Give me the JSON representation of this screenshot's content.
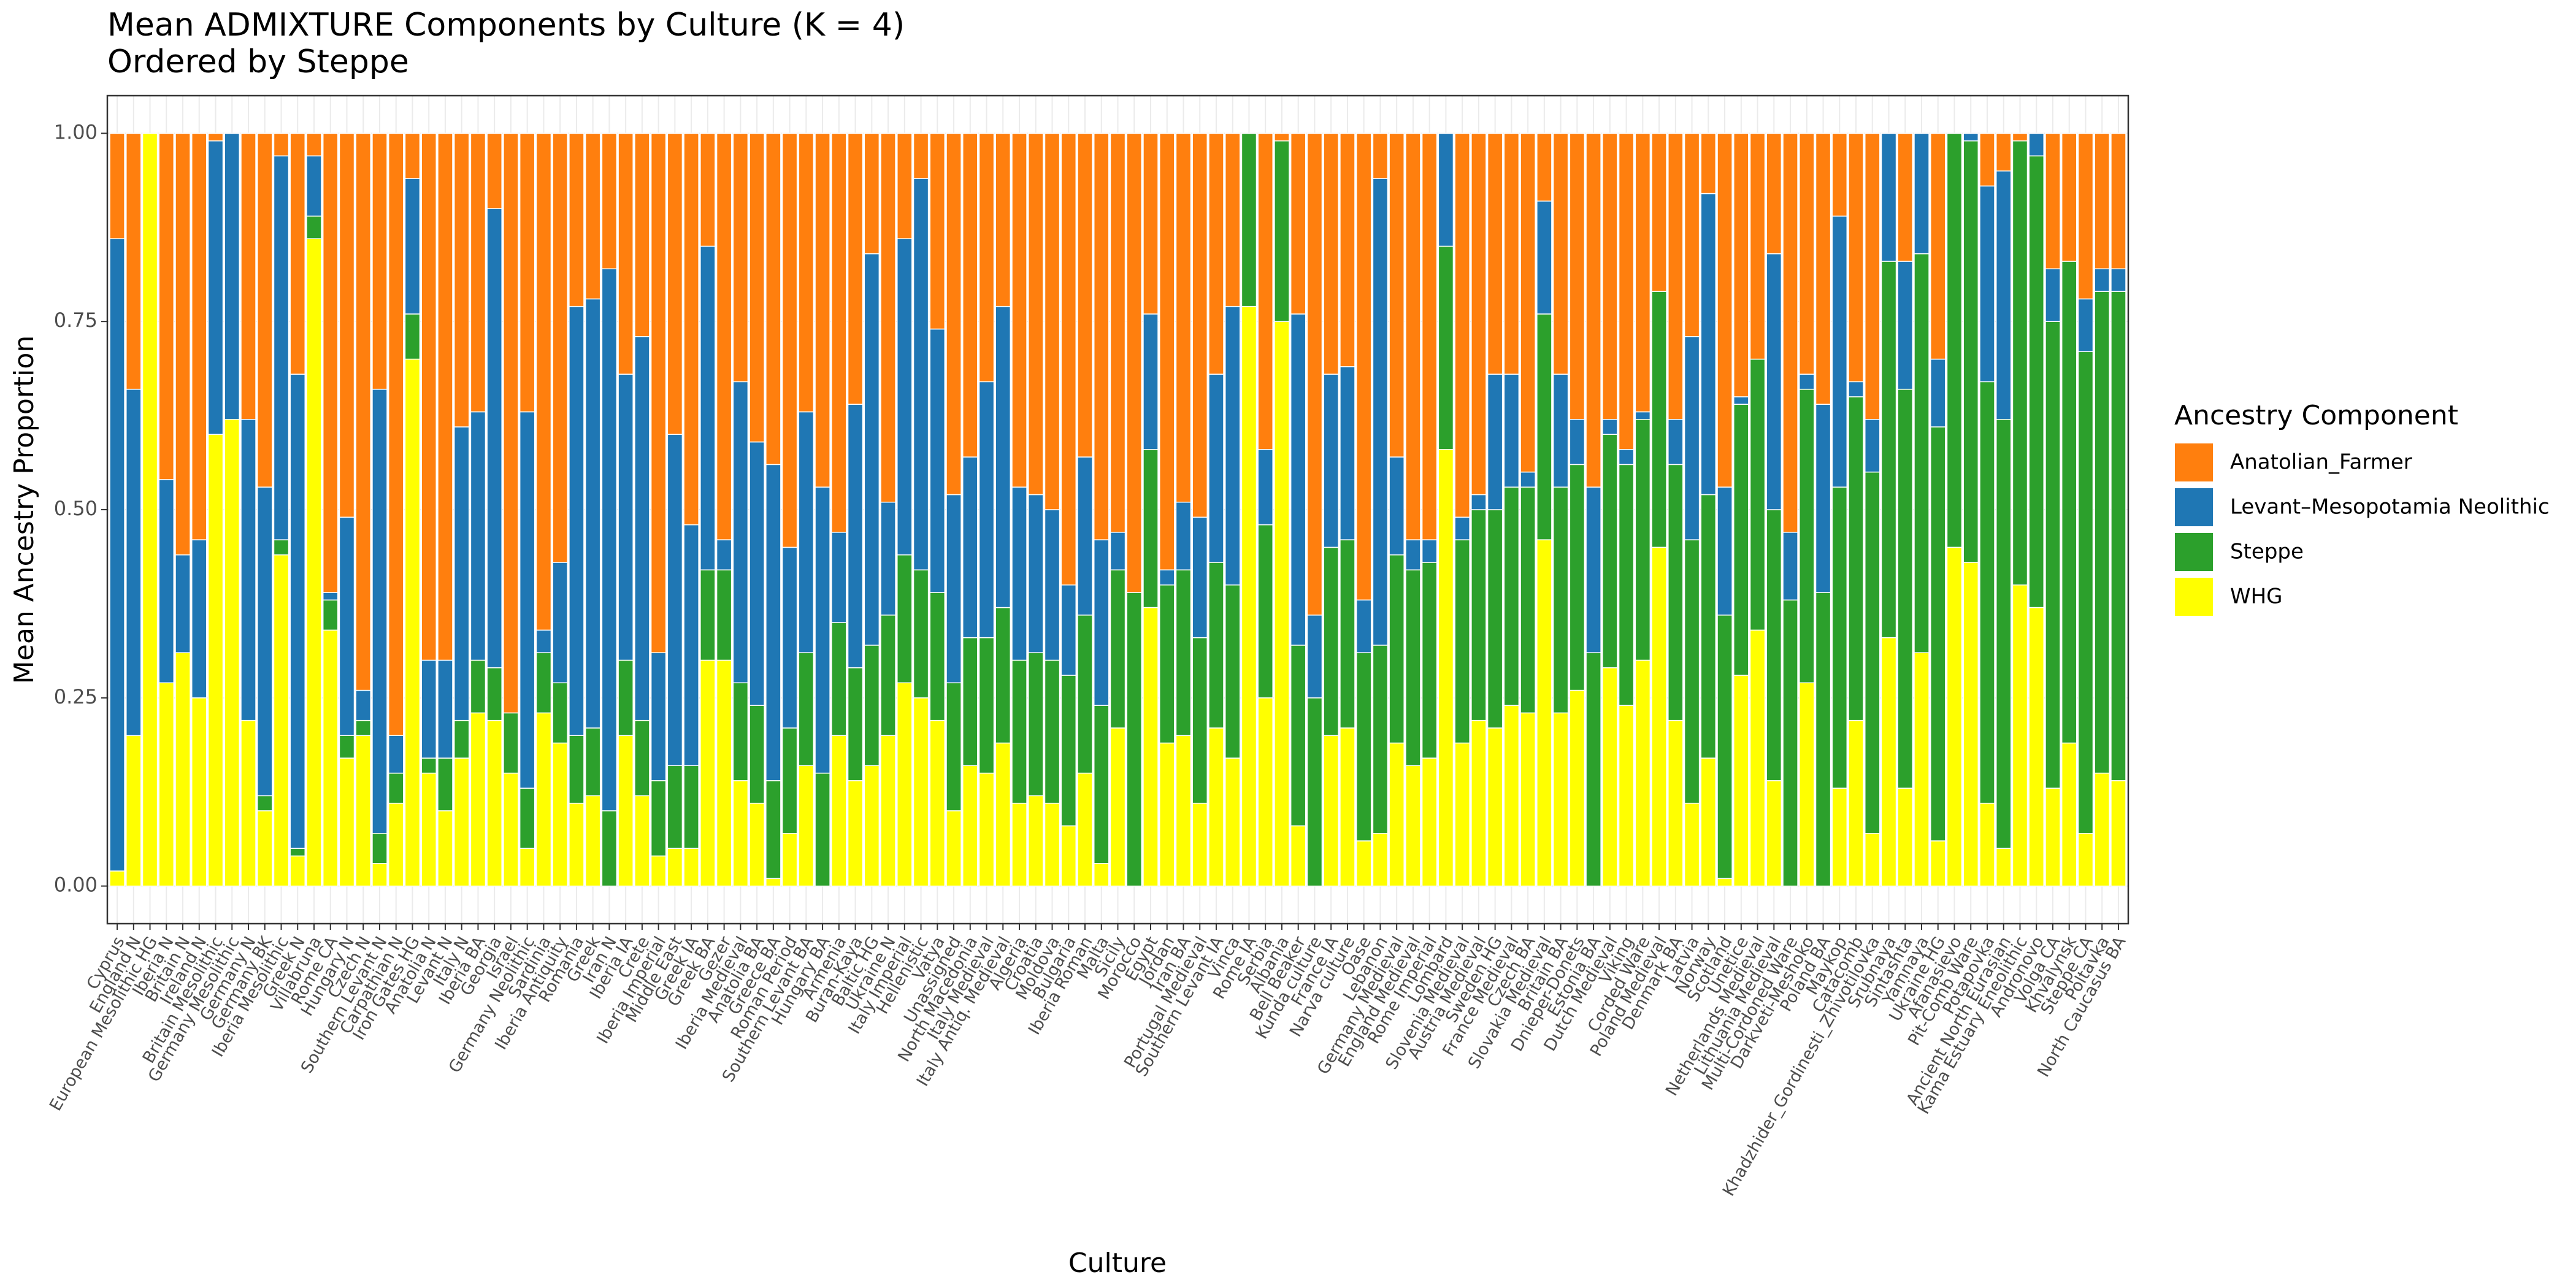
{
  "chart_data": {
    "type": "stacked-bar",
    "title": "Mean ADMIXTURE Components by Culture (K = 4)",
    "subtitle": "Ordered by Steppe",
    "x_label": "Culture",
    "y_label": "Mean Ancestry Proportion",
    "legend_title": "Ancestry Component",
    "legend_position": "right",
    "grid": true,
    "ylim": [
      -0.05,
      1.05
    ],
    "yticks": [
      {
        "value": 0,
        "label": "0.00"
      },
      {
        "value": 0.25,
        "label": "0.25"
      },
      {
        "value": 0.5,
        "label": "0.50"
      },
      {
        "value": 0.75,
        "label": "0.75"
      },
      {
        "value": 1,
        "label": "1.00"
      }
    ],
    "categories": [
      "Cyprus",
      "England N",
      "European Mesolithic HG",
      "Iberia N",
      "Britain N",
      "Ireland N",
      "Britain Mesolithic",
      "Germany Mesolithic",
      "Germany N",
      "Germany BK",
      "Iberia Mesolithic",
      "Greek N",
      "Villabruna",
      "Rome CA",
      "Hungary N",
      "Czech N",
      "Southern Levant N",
      "Carpathian N",
      "Iron Gates HG",
      "Anatolia N",
      "Levant N",
      "Italy N",
      "Iberia BA",
      "Georgia",
      "Israel",
      "Germany Neolithic",
      "Sardinia",
      "Iberia Antiquity",
      "Romania",
      "Greek",
      "Iran N",
      "Iberia IA",
      "Crete",
      "Iberia Imperial",
      "Middle East",
      "Greek IA",
      "Greek BA",
      "Gezer",
      "Iberia Medieval",
      "Anatolia BA",
      "Greece BA",
      "Roman Period",
      "Southern Levant BA",
      "Hungary BA",
      "Armenia",
      "Buran-Kaya",
      "Baltic HG",
      "Ukraine N",
      "Italy Imperial",
      "Hellenistic",
      "Vatya",
      "Unassigned",
      "North Macedonia",
      "Italy Medieval",
      "Italy Antiq. Medieval",
      "Algeria",
      "Croatia",
      "Moldova",
      "Bulgaria",
      "Iberia Roman",
      "Malta",
      "Sicily",
      "Morocco",
      "Egypt",
      "Jordan",
      "Iran BA",
      "Portugal Medieval",
      "Southern Levant IA",
      "Vinca",
      "Rome IA",
      "Serbia",
      "Albania",
      "Bell Beaker",
      "Kunda culture",
      "France IA",
      "Narva culture",
      "Oase",
      "Lebanon",
      "Germany Medieval",
      "England Medieval",
      "Rome Imperial",
      "Lombard",
      "Slovenia Medieval",
      "Austria Medieval",
      "Sweden HG",
      "France Medieval",
      "Czech BA",
      "Slovakia Medieval",
      "Britain BA",
      "Dnieper-Donets",
      "Estonia BA",
      "Dutch Medieval",
      "Viking",
      "Corded Ware",
      "Poland Medieval",
      "Denmark BA",
      "Latvia",
      "Norway",
      "Scotland",
      "Unetice",
      "Netherlands Medieval",
      "Lithuania Medieval",
      "Multi-Cordoned Ware",
      "Darkveti-Meshoko",
      "Poland BA",
      "Maykop",
      "Catacomb",
      "Khadzhider_Gordinesti_Zhivotilovka",
      "Srubnaya",
      "Sintashta",
      "Yamnaya",
      "Ukraine HG",
      "Afanasievo",
      "Pit-Comb Ware",
      "Potapovka",
      "Ancient North Eurasian",
      "Kama Estuary Eneolithic",
      "Andronovo",
      "Volga CA",
      "Khvalynsk",
      "Steppe CA",
      "Poltavka",
      "North Caucasus BA"
    ],
    "series": [
      {
        "name": "Anatolian_Farmer",
        "color": "#ff7f0e",
        "values": [
          0.14,
          0.34,
          0,
          0.46,
          0.56,
          0.54,
          0.01,
          0,
          0.38,
          0.47,
          0.03,
          0.32,
          0.03,
          0.61,
          0.51,
          0.74,
          0.34,
          0.8,
          0.06,
          0.7,
          0.7,
          0.39,
          0.37,
          0.1,
          0.77,
          0.37,
          0.66,
          0.57,
          0.23,
          0.22,
          0.18,
          0.32,
          0.27,
          0.69,
          0.4,
          0.52,
          0.15,
          0.54,
          0.33,
          0.41,
          0.44,
          0.55,
          0.37,
          0.47,
          0.53,
          0.36,
          0.16,
          0.49,
          0.14,
          0.06,
          0.26,
          0.48,
          0.43,
          0.33,
          0.23,
          0.47,
          0.48,
          0.5,
          0.6,
          0.43,
          0.54,
          0.53,
          0.61,
          0.24,
          0.58,
          0.49,
          0.51,
          0.32,
          0.23,
          0,
          0.42,
          0.01,
          0.24,
          0.64,
          0.32,
          0.31,
          0.62,
          0.06,
          0.43,
          0.54,
          0.54,
          0,
          0.51,
          0.48,
          0.32,
          0.32,
          0.45,
          0.09,
          0.32,
          0.38,
          0.47,
          0.38,
          0.42,
          0.37,
          0.21,
          0.38,
          0.27,
          0.08,
          0.47,
          0.35,
          0.3,
          0.16,
          0.53,
          0.32,
          0.36,
          0.11,
          0.33,
          0.38,
          0,
          0.17,
          0,
          0.3,
          0,
          0,
          0.07,
          0.05,
          0.01,
          0,
          0.18,
          0.17,
          0.22,
          0.18,
          0.18
        ]
      },
      {
        "name": "Levant–Mesopotamia Neolithic",
        "color": "#1f77b4",
        "values": [
          0.84,
          0.46,
          0,
          0.27,
          0.13,
          0.21,
          0.39,
          0.38,
          0.4,
          0.41,
          0.51,
          0.63,
          0.08,
          0.01,
          0.29,
          0.04,
          0.59,
          0.05,
          0.18,
          0.13,
          0.13,
          0.39,
          0.33,
          0.61,
          0,
          0.5,
          0.03,
          0.16,
          0.57,
          0.57,
          0.72,
          0.38,
          0.51,
          0.17,
          0.44,
          0.32,
          0.43,
          0.04,
          0.4,
          0.35,
          0.42,
          0.24,
          0.32,
          0.38,
          0.12,
          0.35,
          0.52,
          0.15,
          0.42,
          0.52,
          0.35,
          0.25,
          0.24,
          0.34,
          0.4,
          0.23,
          0.21,
          0.2,
          0.12,
          0.21,
          0.22,
          0.05,
          0,
          0.18,
          0.02,
          0.09,
          0.16,
          0.25,
          0.37,
          0,
          0.1,
          0,
          0.44,
          0.11,
          0.23,
          0.23,
          0.07,
          0.62,
          0.13,
          0.04,
          0.03,
          0.15,
          0.03,
          0.02,
          0.18,
          0.15,
          0.02,
          0.15,
          0.15,
          0.06,
          0.22,
          0.02,
          0.02,
          0.01,
          0,
          0.06,
          0.27,
          0.4,
          0.17,
          0.01,
          0,
          0.34,
          0.09,
          0.02,
          0.25,
          0.36,
          0.02,
          0.07,
          0.17,
          0.17,
          0.16,
          0.09,
          0,
          0.01,
          0.26,
          0.33,
          0,
          0.03,
          0.07,
          0,
          0.07,
          0.03,
          0.03
        ]
      },
      {
        "name": "Steppe",
        "color": "#2ca02c",
        "values": [
          0,
          0,
          0,
          0,
          0,
          0,
          0,
          0,
          0,
          0.02,
          0.02,
          0.01,
          0.03,
          0.04,
          0.03,
          0.02,
          0.04,
          0.04,
          0.06,
          0.02,
          0.07,
          0.05,
          0.07,
          0.07,
          0.08,
          0.08,
          0.08,
          0.08,
          0.09,
          0.09,
          0.1,
          0.1,
          0.1,
          0.1,
          0.11,
          0.11,
          0.12,
          0.12,
          0.13,
          0.13,
          0.13,
          0.14,
          0.15,
          0.15,
          0.15,
          0.15,
          0.16,
          0.16,
          0.17,
          0.17,
          0.17,
          0.17,
          0.17,
          0.18,
          0.18,
          0.19,
          0.19,
          0.19,
          0.2,
          0.21,
          0.21,
          0.21,
          0.39,
          0.21,
          0.21,
          0.22,
          0.22,
          0.22,
          0.23,
          0.23,
          0.23,
          0.24,
          0.24,
          0.25,
          0.25,
          0.25,
          0.25,
          0.25,
          0.25,
          0.26,
          0.26,
          0.27,
          0.27,
          0.28,
          0.29,
          0.29,
          0.3,
          0.3,
          0.3,
          0.3,
          0.31,
          0.31,
          0.32,
          0.32,
          0.34,
          0.34,
          0.35,
          0.35,
          0.35,
          0.36,
          0.36,
          0.36,
          0.38,
          0.39,
          0.39,
          0.4,
          0.43,
          0.48,
          0.5,
          0.53,
          0.53,
          0.55,
          0.55,
          0.56,
          0.56,
          0.57,
          0.59,
          0.6,
          0.62,
          0.64,
          0.64,
          0.64,
          0.65
        ]
      },
      {
        "name": "WHG",
        "color": "#ffff00",
        "values": [
          0.02,
          0.2,
          1,
          0.27,
          0.31,
          0.25,
          0.6,
          0.62,
          0.22,
          0.1,
          0.44,
          0.04,
          0.86,
          0.34,
          0.17,
          0.2,
          0.03,
          0.11,
          0.7,
          0.15,
          0.1,
          0.17,
          0.23,
          0.22,
          0.15,
          0.05,
          0.23,
          0.19,
          0.11,
          0.12,
          0,
          0.2,
          0.12,
          0.04,
          0.05,
          0.05,
          0.3,
          0.3,
          0.14,
          0.11,
          0.01,
          0.07,
          0.16,
          0,
          0.2,
          0.14,
          0.16,
          0.2,
          0.27,
          0.25,
          0.22,
          0.1,
          0.16,
          0.15,
          0.19,
          0.11,
          0.12,
          0.11,
          0.08,
          0.15,
          0.03,
          0.21,
          0,
          0.37,
          0.19,
          0.2,
          0.11,
          0.21,
          0.17,
          0.77,
          0.25,
          0.75,
          0.08,
          0,
          0.2,
          0.21,
          0.06,
          0.07,
          0.19,
          0.16,
          0.17,
          0.58,
          0.19,
          0.22,
          0.21,
          0.24,
          0.23,
          0.46,
          0.23,
          0.26,
          0,
          0.29,
          0.24,
          0.3,
          0.45,
          0.22,
          0.11,
          0.17,
          0.01,
          0.28,
          0.34,
          0.14,
          0,
          0.27,
          0,
          0.13,
          0.22,
          0.07,
          0.33,
          0.13,
          0.31,
          0.06,
          0.45,
          0.43,
          0.11,
          0.05,
          0.4,
          0.37,
          0.13,
          0.19,
          0.07,
          0.15,
          0.14
        ]
      }
    ]
  }
}
